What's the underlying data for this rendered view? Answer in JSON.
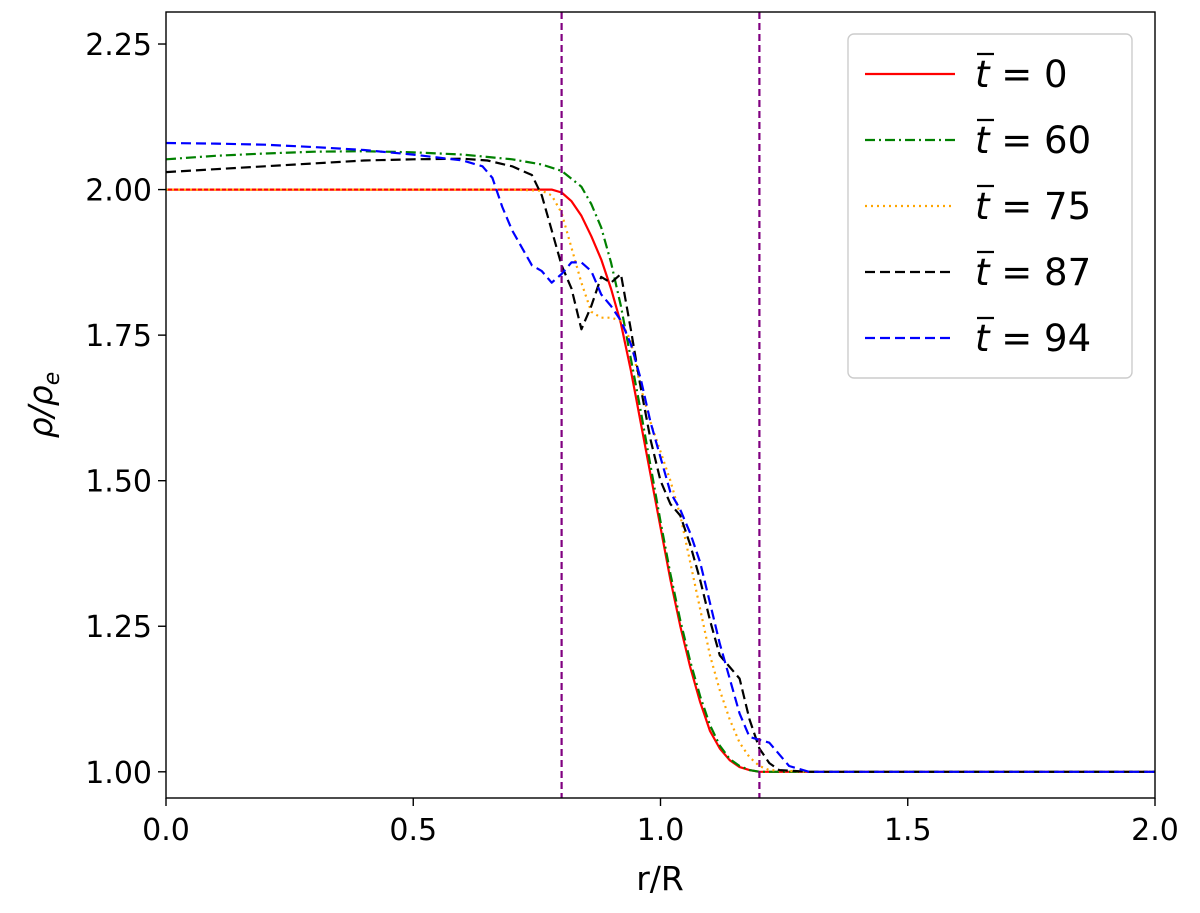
{
  "chart_data": {
    "type": "line",
    "title": "",
    "xlabel": "r/R",
    "ylabel": "ρ/ρ",
    "ylabel_sub": "e",
    "xlim": [
      0.0,
      2.0
    ],
    "ylim": [
      0.955,
      2.305
    ],
    "xticks": [
      0.0,
      0.5,
      1.0,
      1.5,
      2.0
    ],
    "xtick_labels": [
      "0.0",
      "0.5",
      "1.0",
      "1.5",
      "2.0"
    ],
    "yticks": [
      1.0,
      1.25,
      1.5,
      1.75,
      2.0,
      2.25
    ],
    "ytick_labels": [
      "1.00",
      "1.25",
      "1.50",
      "1.75",
      "2.00",
      "2.25"
    ],
    "grid": false,
    "legend_position": "top-right",
    "vlines": [
      {
        "x": 0.8,
        "color": "#800080",
        "style": "dashed"
      },
      {
        "x": 1.2,
        "color": "#800080",
        "style": "dashed"
      }
    ],
    "series": [
      {
        "name": "t̄ = 0",
        "t_value": "0",
        "color": "#ff0000",
        "style": "solid",
        "x": [
          0,
          0.2,
          0.4,
          0.6,
          0.7,
          0.78,
          0.8,
          0.82,
          0.84,
          0.86,
          0.88,
          0.9,
          0.92,
          0.94,
          0.96,
          0.98,
          1.0,
          1.02,
          1.04,
          1.06,
          1.08,
          1.1,
          1.12,
          1.14,
          1.16,
          1.18,
          1.2,
          1.24,
          1.4,
          1.6,
          1.8,
          2.0
        ],
        "y": [
          2.0,
          2.0,
          2.0,
          2.0,
          2.0,
          2.0,
          1.995,
          1.98,
          1.955,
          1.92,
          1.88,
          1.83,
          1.77,
          1.69,
          1.6,
          1.51,
          1.42,
          1.33,
          1.25,
          1.18,
          1.12,
          1.07,
          1.04,
          1.02,
          1.008,
          1.003,
          1.0,
          1.0,
          1.0,
          1.0,
          1.0,
          1.0
        ]
      },
      {
        "name": "t̄ = 60",
        "t_value": "60",
        "color": "#008000",
        "style": "dashdot",
        "x": [
          0,
          0.1,
          0.2,
          0.3,
          0.4,
          0.5,
          0.6,
          0.7,
          0.76,
          0.8,
          0.84,
          0.86,
          0.88,
          0.9,
          0.92,
          0.94,
          0.96,
          0.98,
          1.0,
          1.02,
          1.04,
          1.06,
          1.08,
          1.1,
          1.12,
          1.14,
          1.16,
          1.18,
          1.2,
          1.3,
          1.5,
          1.7,
          2.0
        ],
        "y": [
          2.052,
          2.058,
          2.062,
          2.065,
          2.066,
          2.064,
          2.06,
          2.052,
          2.043,
          2.032,
          2.005,
          1.975,
          1.935,
          1.875,
          1.8,
          1.71,
          1.62,
          1.525,
          1.43,
          1.34,
          1.26,
          1.19,
          1.13,
          1.08,
          1.045,
          1.022,
          1.01,
          1.003,
          1.0,
          1.0,
          1.0,
          1.0,
          1.0
        ]
      },
      {
        "name": "t̄ = 75",
        "t_value": "75",
        "color": "#ffa500",
        "style": "dotted",
        "x": [
          0,
          0.2,
          0.4,
          0.6,
          0.7,
          0.76,
          0.78,
          0.8,
          0.82,
          0.84,
          0.86,
          0.88,
          0.9,
          0.92,
          0.94,
          0.96,
          0.98,
          1.0,
          1.02,
          1.04,
          1.06,
          1.08,
          1.1,
          1.12,
          1.14,
          1.16,
          1.18,
          1.2,
          1.22,
          1.3,
          1.5,
          2.0
        ],
        "y": [
          2.0,
          2.0,
          2.0,
          2.0,
          2.0,
          1.998,
          1.99,
          1.96,
          1.9,
          1.84,
          1.79,
          1.78,
          1.78,
          1.775,
          1.74,
          1.66,
          1.6,
          1.55,
          1.5,
          1.44,
          1.36,
          1.28,
          1.2,
          1.14,
          1.09,
          1.05,
          1.025,
          1.01,
          1.003,
          1.0,
          1.0,
          1.0
        ]
      },
      {
        "name": "t̄ = 87",
        "t_value": "87",
        "color": "#000000",
        "style": "dashed",
        "x": [
          0,
          0.1,
          0.2,
          0.3,
          0.4,
          0.5,
          0.6,
          0.65,
          0.7,
          0.74,
          0.76,
          0.78,
          0.8,
          0.82,
          0.84,
          0.86,
          0.88,
          0.9,
          0.92,
          0.94,
          0.96,
          0.98,
          1.0,
          1.02,
          1.04,
          1.06,
          1.08,
          1.1,
          1.12,
          1.14,
          1.16,
          1.18,
          1.2,
          1.22,
          1.24,
          1.3,
          1.5,
          2.0
        ],
        "y": [
          2.03,
          2.035,
          2.04,
          2.045,
          2.05,
          2.052,
          2.053,
          2.05,
          2.04,
          2.025,
          1.99,
          1.93,
          1.87,
          1.83,
          1.76,
          1.8,
          1.85,
          1.84,
          1.855,
          1.76,
          1.66,
          1.57,
          1.5,
          1.46,
          1.44,
          1.39,
          1.33,
          1.26,
          1.2,
          1.18,
          1.16,
          1.09,
          1.04,
          1.015,
          1.003,
          1.0,
          1.0,
          1.0
        ]
      },
      {
        "name": "t̄ = 94",
        "t_value": "94",
        "color": "#0000ff",
        "style": "dashed",
        "x": [
          0,
          0.1,
          0.2,
          0.3,
          0.4,
          0.5,
          0.6,
          0.64,
          0.66,
          0.68,
          0.7,
          0.72,
          0.74,
          0.76,
          0.78,
          0.8,
          0.82,
          0.84,
          0.86,
          0.88,
          0.9,
          0.92,
          0.94,
          0.96,
          0.98,
          1.0,
          1.02,
          1.04,
          1.06,
          1.08,
          1.1,
          1.12,
          1.14,
          1.16,
          1.18,
          1.2,
          1.22,
          1.24,
          1.26,
          1.3,
          1.5,
          2.0
        ],
        "y": [
          2.08,
          2.079,
          2.077,
          2.073,
          2.068,
          2.06,
          2.05,
          2.04,
          2.02,
          1.97,
          1.93,
          1.9,
          1.87,
          1.86,
          1.84,
          1.855,
          1.875,
          1.875,
          1.86,
          1.82,
          1.8,
          1.775,
          1.735,
          1.675,
          1.6,
          1.54,
          1.48,
          1.45,
          1.41,
          1.36,
          1.29,
          1.22,
          1.16,
          1.1,
          1.06,
          1.055,
          1.05,
          1.03,
          1.01,
          1.0,
          1.0,
          1.0
        ]
      }
    ]
  }
}
